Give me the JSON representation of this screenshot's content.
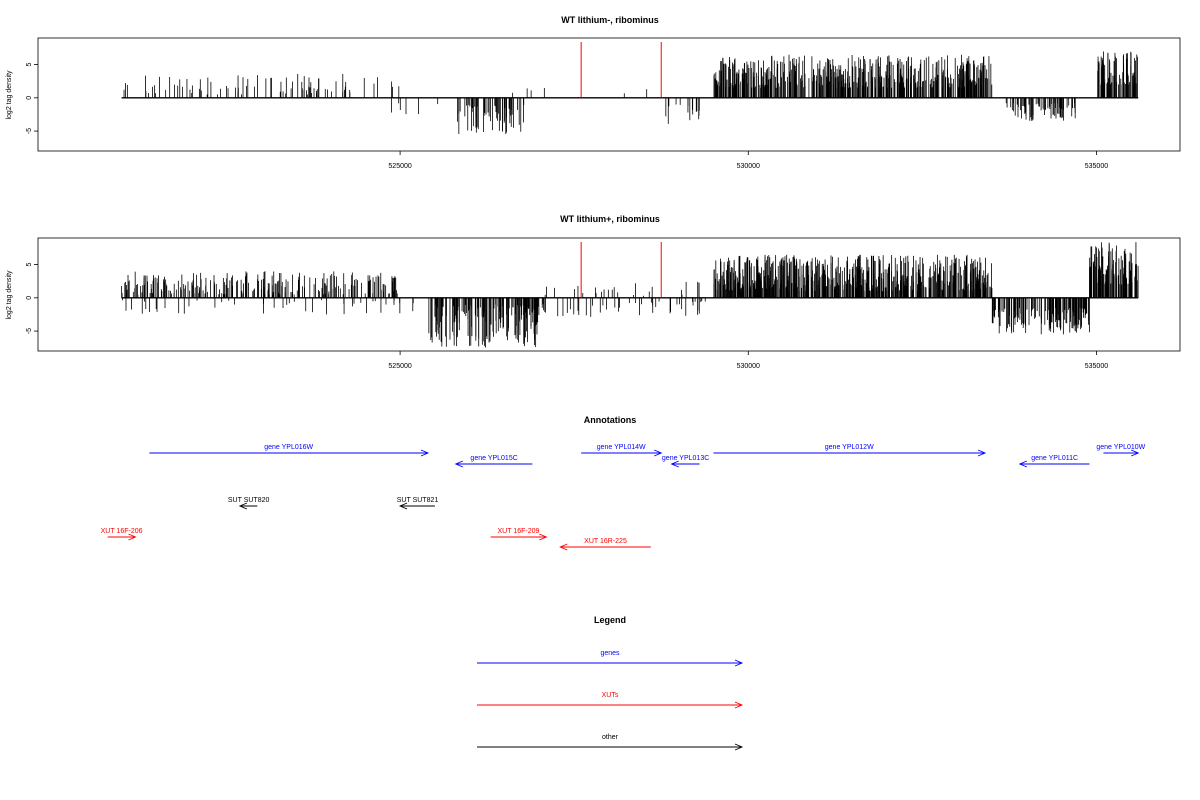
{
  "chart_data": [
    {
      "type": "bar",
      "title": "WT lithium-, ribominus",
      "ylabel": "log2 tag density",
      "xlim": [
        519800,
        536200
      ],
      "ylim": [
        -8,
        9
      ],
      "xticks": [
        525000,
        530000,
        535000
      ],
      "yticks": [
        -5,
        0,
        5
      ],
      "grid": false,
      "legend": "none",
      "baseline": 0,
      "markers": [
        {
          "x": 527600,
          "color": "#ff0000"
        },
        {
          "x": 528750,
          "color": "#ff0000"
        }
      ],
      "x_range_of_data": [
        521000,
        535600
      ],
      "regions": [
        {
          "start": 521000,
          "end": 525000,
          "sign": 1,
          "min": 0.5,
          "max": 3.6,
          "n": 85
        },
        {
          "start": 524800,
          "end": 525600,
          "sign": -1,
          "min": 0.5,
          "max": 2.5,
          "n": 6
        },
        {
          "start": 525800,
          "end": 526800,
          "sign": -1,
          "min": 1.0,
          "max": 5.5,
          "n": 60
        },
        {
          "start": 526300,
          "end": 527400,
          "sign": 1,
          "min": 0.5,
          "max": 2.0,
          "n": 4
        },
        {
          "start": 528200,
          "end": 528600,
          "sign": 1,
          "min": 0.5,
          "max": 2.5,
          "n": 2
        },
        {
          "start": 528800,
          "end": 529300,
          "sign": -1,
          "min": 1.0,
          "max": 4.0,
          "n": 15
        },
        {
          "start": 529500,
          "end": 533500,
          "sign": 1,
          "min": 1.5,
          "max": 6.5,
          "n": 520
        },
        {
          "start": 533700,
          "end": 534700,
          "sign": -1,
          "min": 0.8,
          "max": 3.8,
          "n": 70
        },
        {
          "start": 535000,
          "end": 535600,
          "sign": 1,
          "min": 2.0,
          "max": 7.0,
          "n": 80
        }
      ]
    },
    {
      "type": "bar",
      "title": "WT lithium+, ribominus",
      "ylabel": "log2 tag density",
      "xlim": [
        519800,
        536200
      ],
      "ylim": [
        -8,
        9
      ],
      "xticks": [
        525000,
        530000,
        535000
      ],
      "yticks": [
        -5,
        0,
        5
      ],
      "grid": false,
      "legend": "none",
      "baseline": 0,
      "markers": [
        {
          "x": 527600,
          "color": "#ff0000"
        },
        {
          "x": 528750,
          "color": "#ff0000"
        }
      ],
      "x_range_of_data": [
        521000,
        535600
      ],
      "regions": [
        {
          "start": 521000,
          "end": 525000,
          "sign": 1,
          "min": 0.5,
          "max": 4.0,
          "n": 230
        },
        {
          "start": 521000,
          "end": 525400,
          "sign": -1,
          "min": 0.3,
          "max": 2.5,
          "n": 45
        },
        {
          "start": 525400,
          "end": 527000,
          "sign": -1,
          "min": 1.0,
          "max": 7.5,
          "n": 170
        },
        {
          "start": 526900,
          "end": 529400,
          "sign": 1,
          "min": 0.3,
          "max": 2.5,
          "n": 25
        },
        {
          "start": 527000,
          "end": 529400,
          "sign": -1,
          "min": 0.5,
          "max": 3.0,
          "n": 45
        },
        {
          "start": 529500,
          "end": 533500,
          "sign": 1,
          "min": 1.0,
          "max": 6.5,
          "n": 600
        },
        {
          "start": 533500,
          "end": 534900,
          "sign": -1,
          "min": 1.5,
          "max": 5.5,
          "n": 150
        },
        {
          "start": 534900,
          "end": 535600,
          "sign": 1,
          "min": 2.0,
          "max": 8.5,
          "n": 110
        }
      ]
    }
  ],
  "annotations": {
    "title": "Annotations",
    "features": [
      {
        "label": "gene YPL016W",
        "start": 521400,
        "end": 525400,
        "strand": "+",
        "row": "genes",
        "color": "#0000ff"
      },
      {
        "label": "gene YPL015C",
        "start": 525800,
        "end": 526900,
        "strand": "-",
        "row": "genes2",
        "color": "#0000ff"
      },
      {
        "label": "gene YPL014W",
        "start": 527600,
        "end": 528750,
        "strand": "+",
        "row": "genes",
        "color": "#0000ff"
      },
      {
        "label": "gene YPL013C",
        "start": 528900,
        "end": 529300,
        "strand": "-",
        "row": "genes2",
        "color": "#0000ff"
      },
      {
        "label": "gene YPL012W",
        "start": 529500,
        "end": 533400,
        "strand": "+",
        "row": "genes",
        "color": "#0000ff"
      },
      {
        "label": "gene YPL011C",
        "start": 533900,
        "end": 534900,
        "strand": "-",
        "row": "genes2",
        "color": "#0000ff"
      },
      {
        "label": "gene YPL010W",
        "start": 535100,
        "end": 535600,
        "strand": "+",
        "row": "genes",
        "color": "#0000ff"
      },
      {
        "label": "SUT SUT820",
        "start": 522700,
        "end": 522950,
        "strand": "-",
        "row": "suts",
        "color": "#000000"
      },
      {
        "label": "SUT SUT821",
        "start": 525000,
        "end": 525500,
        "strand": "-",
        "row": "suts",
        "color": "#000000"
      },
      {
        "label": "XUT 16F-206",
        "start": 520800,
        "end": 521200,
        "strand": "+",
        "row": "xuts",
        "color": "#ff0000"
      },
      {
        "label": "XUT 16F-209",
        "start": 526300,
        "end": 527100,
        "strand": "+",
        "row": "xuts",
        "color": "#ff0000"
      },
      {
        "label": "XUT 16R-225",
        "start": 527300,
        "end": 528600,
        "strand": "-",
        "row": "xuts2",
        "color": "#ff0000"
      }
    ]
  },
  "legend": {
    "title": "Legend",
    "items": [
      {
        "label": "genes",
        "color": "#0000ff"
      },
      {
        "label": "XUTs",
        "color": "#ff0000"
      },
      {
        "label": "other",
        "color": "#000000"
      }
    ]
  }
}
